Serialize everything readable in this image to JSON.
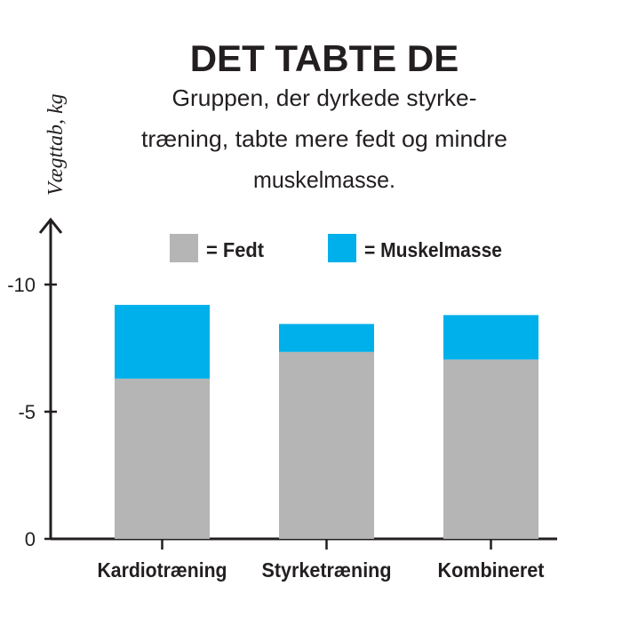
{
  "chart_data": {
    "type": "bar",
    "stacked": true,
    "title": "DET TABTE DE",
    "subtitle": [
      "Gruppen, der dyrkede styrke-",
      "træning, tabte mere fedt og mindre",
      "muskelmasse."
    ],
    "ylabel": "Vægttab, kg",
    "xlabel": "",
    "categories": [
      "Kardiotræning",
      "Styrketræning",
      "Kombineret"
    ],
    "series": [
      {
        "name": "= Fedt",
        "color": "#b5b5b5",
        "values": [
          -6.3,
          -7.35,
          -7.05
        ]
      },
      {
        "name": "= Muskelmasse",
        "color": "#00b0ea",
        "values": [
          -2.9,
          -1.1,
          -1.75
        ]
      }
    ],
    "yticks": [
      0,
      -5,
      -10
    ],
    "ytick_labels": [
      "0",
      "-5",
      "-10"
    ],
    "ylim": [
      0,
      -11.5
    ],
    "grid": false,
    "legend_position": "top"
  }
}
